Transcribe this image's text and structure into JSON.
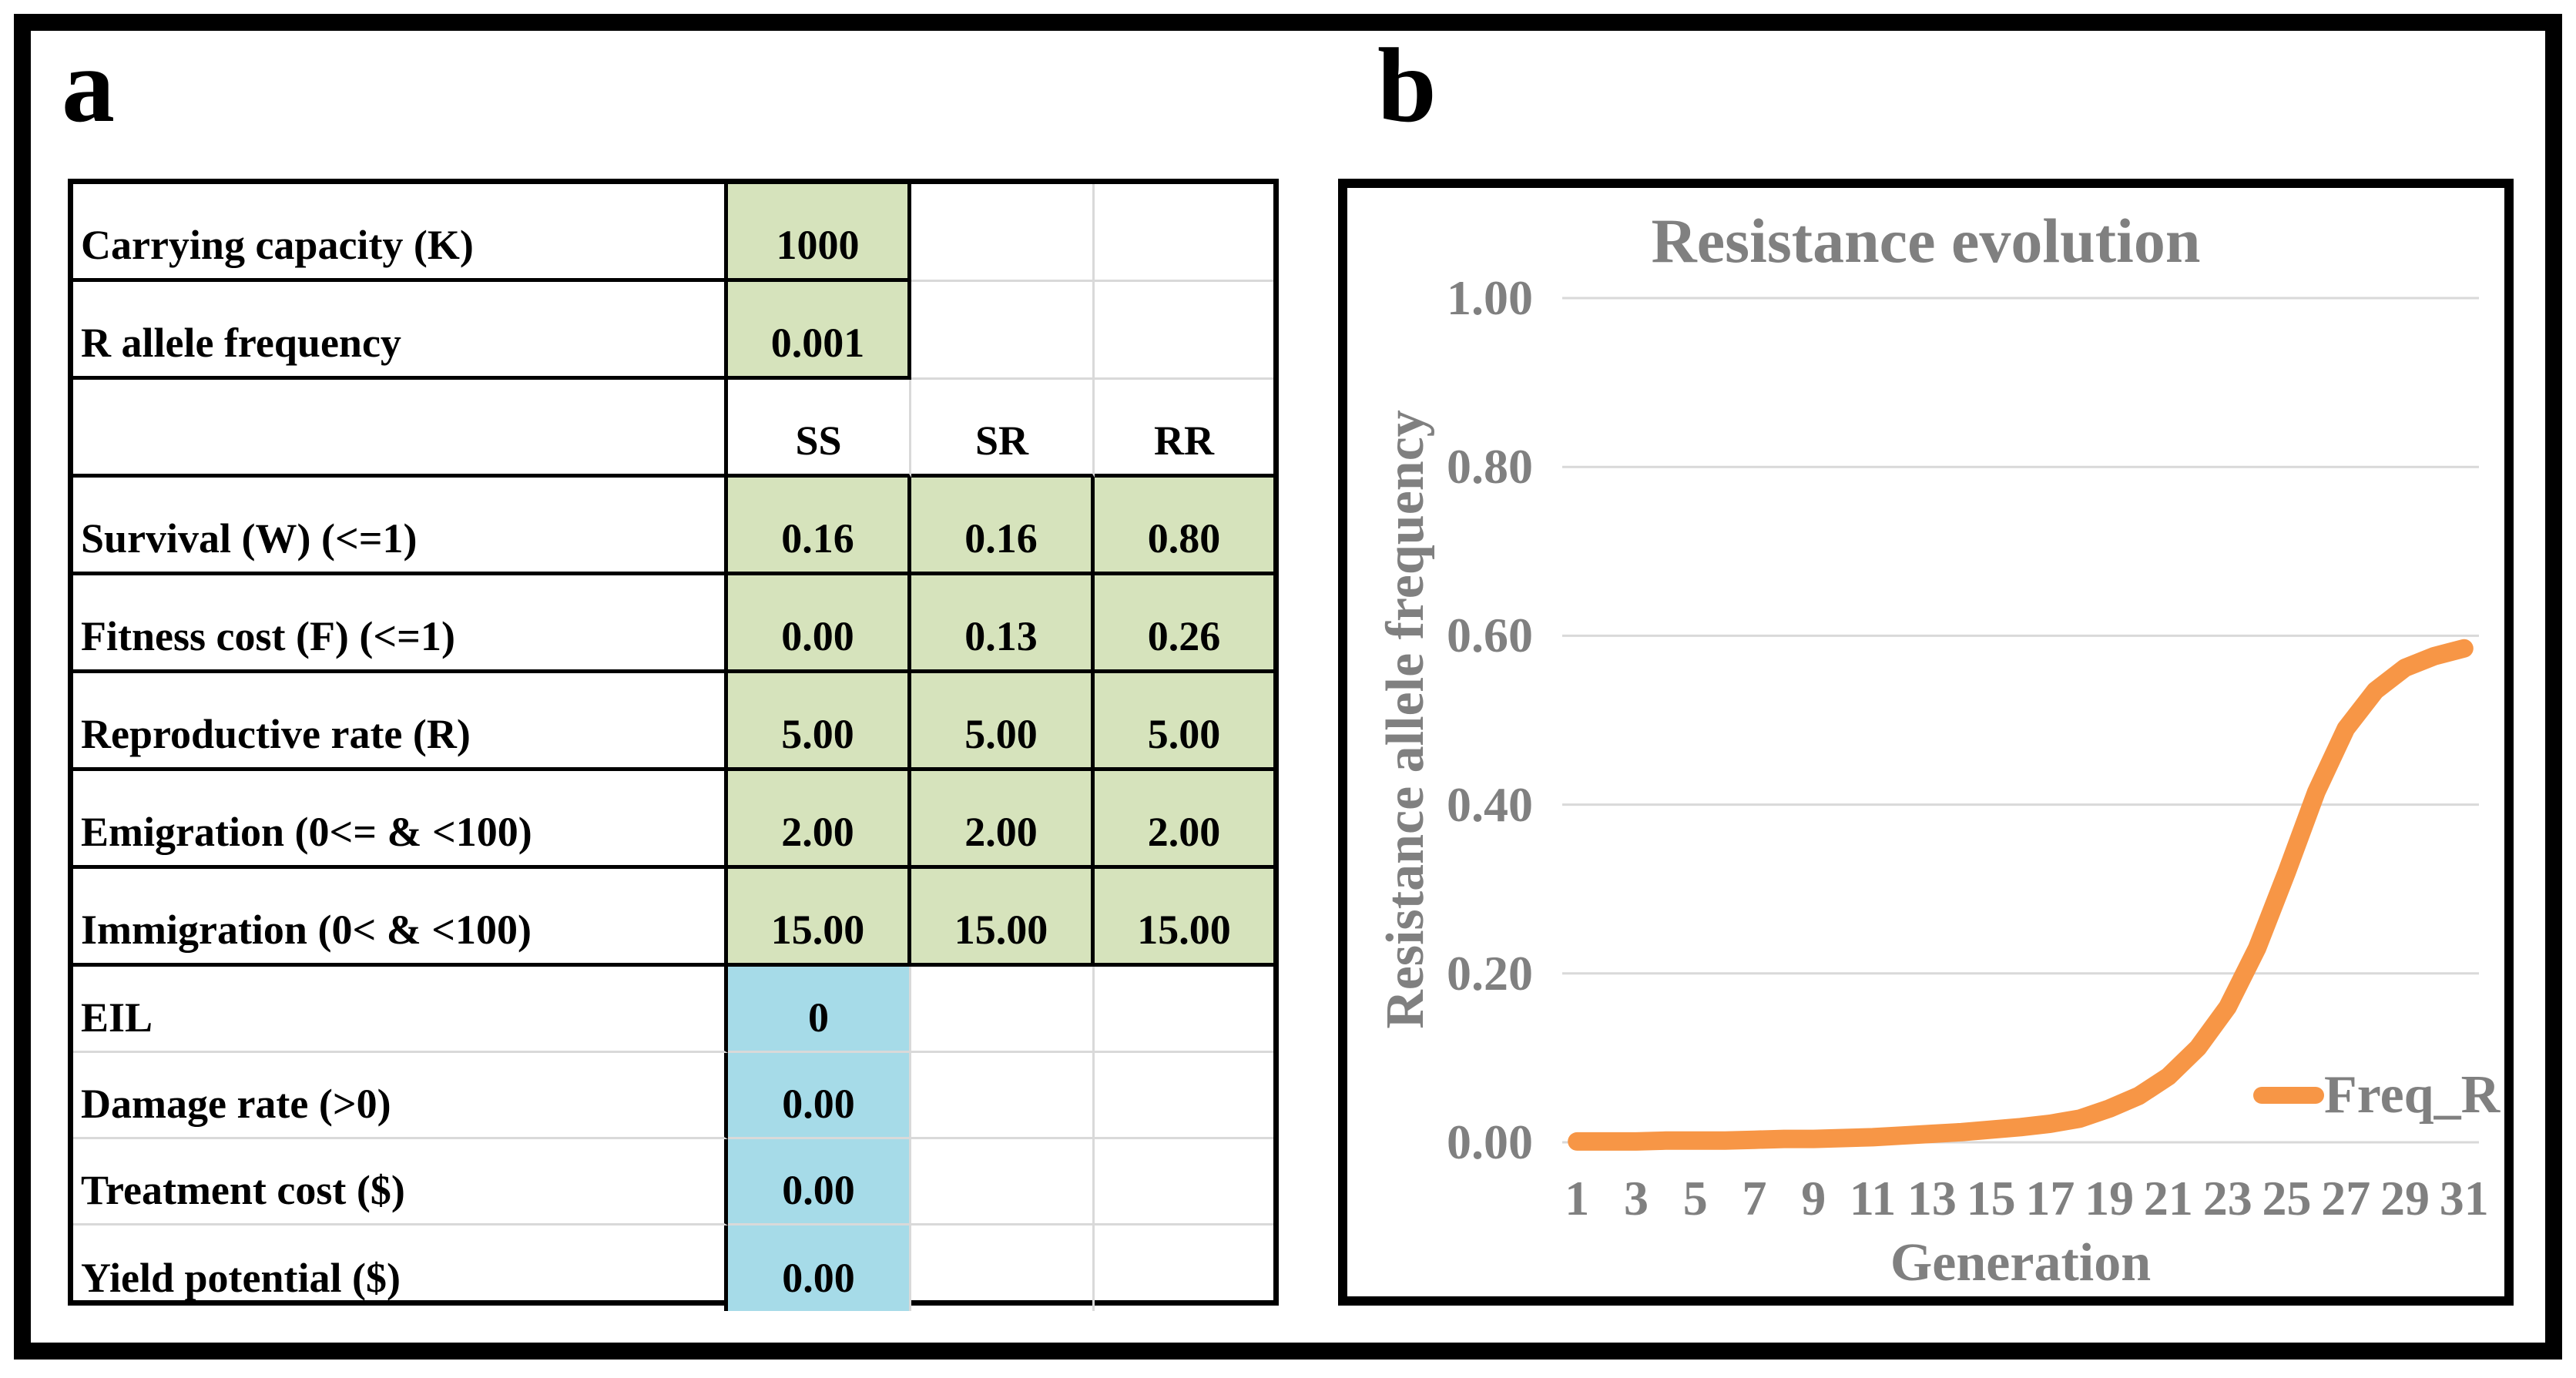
{
  "figure": {
    "panel_a_label": "a",
    "panel_b_label": "b"
  },
  "colors": {
    "green_input_cell": "#D6E3BC",
    "blue_input_cell": "#A6DBE8",
    "curve_orange": "#F79646",
    "chart_text_gray": "#808080",
    "gridline_gray": "#D9D9D9"
  },
  "table": {
    "genotype_columns": [
      "SS",
      "SR",
      "RR"
    ],
    "rows": [
      {
        "type": "param",
        "fill": "green-first",
        "label": "Carrying capacity (K)",
        "values": [
          "1000",
          "",
          ""
        ]
      },
      {
        "type": "param",
        "fill": "green-first",
        "label": "R allele frequency",
        "values": [
          "0.001",
          "",
          ""
        ]
      },
      {
        "type": "header",
        "fill": "none",
        "label": "",
        "values": [
          "SS",
          "SR",
          "RR"
        ]
      },
      {
        "type": "param",
        "fill": "green-all",
        "label": "Survival (W) (<=1)",
        "values": [
          "0.16",
          "0.16",
          "0.80"
        ]
      },
      {
        "type": "param",
        "fill": "green-all",
        "label": "Fitness cost (F) (<=1)",
        "values": [
          "0.00",
          "0.13",
          "0.26"
        ]
      },
      {
        "type": "param",
        "fill": "green-all",
        "label": "Reproductive rate (R)",
        "values": [
          "5.00",
          "5.00",
          "5.00"
        ]
      },
      {
        "type": "param",
        "fill": "green-all",
        "label": "Emigration (0<= & <100)",
        "values": [
          "2.00",
          "2.00",
          "2.00"
        ]
      },
      {
        "type": "param",
        "fill": "green-all",
        "label": "Immigration (0< & <100)",
        "values": [
          "15.00",
          "15.00",
          "15.00"
        ]
      },
      {
        "type": "param",
        "fill": "blue-first",
        "label": "EIL",
        "values": [
          "0",
          "",
          ""
        ]
      },
      {
        "type": "param",
        "fill": "blue-first",
        "label": "Damage rate (>0)",
        "values": [
          "0.00",
          "",
          ""
        ]
      },
      {
        "type": "param",
        "fill": "blue-first",
        "label": "Treatment cost ($)",
        "values": [
          "0.00",
          "",
          ""
        ]
      },
      {
        "type": "param",
        "fill": "blue-first",
        "label": "Yield potential ($)",
        "values": [
          "0.00",
          "",
          ""
        ]
      }
    ]
  },
  "chart_data": {
    "type": "line",
    "title": "Resistance evolution",
    "xlabel": "Generation",
    "ylabel": "Resistance allele frequency",
    "x": [
      1,
      2,
      3,
      4,
      5,
      6,
      7,
      8,
      9,
      10,
      11,
      12,
      13,
      14,
      15,
      16,
      17,
      18,
      19,
      20,
      21,
      22,
      23,
      24,
      25,
      26,
      27,
      28,
      29,
      30,
      31
    ],
    "x_tick_labels": [
      1,
      3,
      5,
      7,
      9,
      11,
      13,
      15,
      17,
      19,
      21,
      23,
      25,
      27,
      29,
      31
    ],
    "y_tick_labels": [
      "1.00",
      "0.80",
      "0.60",
      "0.40",
      "0.20",
      "0.00"
    ],
    "ylim": [
      0,
      1
    ],
    "grid": true,
    "legend_position": "inside-bottom-right",
    "series": [
      {
        "name": "Freq_R",
        "color": "#F79646",
        "values": [
          0.001,
          0.001,
          0.001,
          0.002,
          0.002,
          0.002,
          0.003,
          0.004,
          0.004,
          0.005,
          0.006,
          0.008,
          0.01,
          0.012,
          0.015,
          0.018,
          0.022,
          0.028,
          0.04,
          0.055,
          0.078,
          0.112,
          0.16,
          0.23,
          0.32,
          0.415,
          0.49,
          0.535,
          0.562,
          0.576,
          0.585
        ]
      }
    ]
  }
}
